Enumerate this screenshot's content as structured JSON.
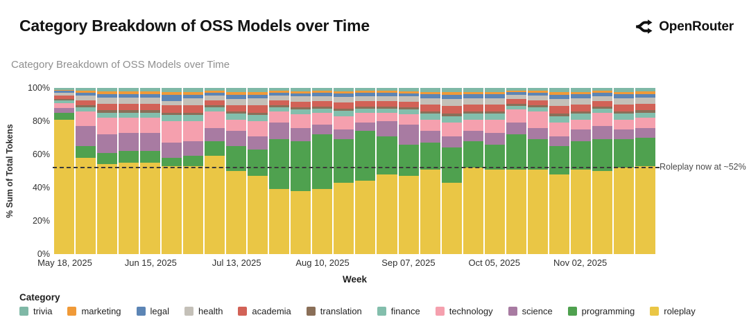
{
  "header": {
    "title": "Category Breakdown of OSS Models over Time",
    "brand": "OpenRouter"
  },
  "chart": {
    "subtitle": "Category Breakdown of OSS Models over Time",
    "ylabel": "% Sum of Total Tokens",
    "xlabel": "Week",
    "legend_title": "Category"
  },
  "chart_data": {
    "type": "bar",
    "stacked": true,
    "units": "percent of total tokens",
    "title": "Category Breakdown of OSS Models over Time",
    "xlabel": "Week",
    "ylabel": "% Sum of Total Tokens",
    "ylim": [
      0,
      100
    ],
    "yticks": [
      0,
      20,
      40,
      60,
      80,
      100
    ],
    "ytick_suffix": "%",
    "grid": false,
    "x": [
      "May 18, 2025",
      "May 25, 2025",
      "Jun 01, 2025",
      "Jun 08, 2025",
      "Jun 15, 2025",
      "Jun 22, 2025",
      "Jun 29, 2025",
      "Jul 06, 2025",
      "Jul 13, 2025",
      "Jul 20, 2025",
      "Jul 27, 2025",
      "Aug 03, 2025",
      "Aug 10, 2025",
      "Aug 17, 2025",
      "Aug 24, 2025",
      "Aug 31, 2025",
      "Sep 07, 2025",
      "Sep 14, 2025",
      "Sep 21, 2025",
      "Sep 28, 2025",
      "Oct 05, 2025",
      "Oct 12, 2025",
      "Oct 19, 2025",
      "Oct 26, 2025",
      "Nov 02, 2025",
      "Nov 09, 2025",
      "Nov 16, 2025",
      "Nov 23, 2025"
    ],
    "xtick_indices": [
      0,
      4,
      8,
      12,
      16,
      20,
      24
    ],
    "stack_order_bottom_to_top": [
      "roleplay",
      "programming",
      "science",
      "technology",
      "finance",
      "translation",
      "academia",
      "health",
      "legal",
      "marketing",
      "trivia"
    ],
    "series": [
      {
        "name": "roleplay",
        "color": "#EAC645",
        "values": [
          81,
          58,
          54,
          55,
          55,
          53,
          53,
          59,
          50,
          47,
          39,
          38,
          39,
          43,
          44,
          48,
          47,
          51,
          43,
          52,
          51,
          51,
          51,
          48,
          51,
          50,
          52,
          53
        ]
      },
      {
        "name": "programming",
        "color": "#4FA14F",
        "values": [
          4,
          7,
          7,
          7,
          7,
          5,
          6,
          9,
          15,
          16,
          30,
          30,
          33,
          26,
          30,
          23,
          19,
          16,
          21,
          16,
          15,
          21,
          18,
          17,
          17,
          19,
          17,
          17
        ]
      },
      {
        "name": "science",
        "color": "#A87BA2",
        "values": [
          3,
          12,
          11,
          11,
          11,
          9,
          9,
          8,
          9,
          8,
          10,
          8,
          6,
          6,
          5,
          9,
          12,
          7,
          7,
          6,
          7,
          7,
          7,
          6,
          7,
          8,
          6,
          6
        ]
      },
      {
        "name": "technology",
        "color": "#F5A0AE",
        "values": [
          3,
          9,
          10,
          9,
          9,
          13,
          12,
          10,
          7,
          9,
          7,
          8,
          7,
          8,
          6,
          5,
          6,
          7,
          8,
          7,
          8,
          8,
          10,
          8,
          6,
          8,
          6,
          6
        ]
      },
      {
        "name": "finance",
        "color": "#83BEAC",
        "values": [
          1.6,
          2.5,
          3.2,
          3.2,
          3.2,
          3.6,
          3.6,
          2.5,
          3.4,
          3.6,
          2.5,
          2.9,
          2.7,
          3.1,
          2.7,
          2.7,
          2.9,
          3.4,
          3.8,
          3.4,
          3.4,
          2.3,
          2.5,
          3.8,
          3.4,
          2.7,
          3.4,
          3.2
        ]
      },
      {
        "name": "translation",
        "color": "#8A6F58",
        "values": [
          0.7,
          1.1,
          1.4,
          1.4,
          1.4,
          1.6,
          1.6,
          1.1,
          1.5,
          1.6,
          1.1,
          1.3,
          1.2,
          1.4,
          1.2,
          1.2,
          1.3,
          1.5,
          1.7,
          1.5,
          1.5,
          1.0,
          1.1,
          1.7,
          1.5,
          1.2,
          1.5,
          1.4
        ]
      },
      {
        "name": "academia",
        "color": "#D26257",
        "values": [
          2.0,
          3.1,
          4.0,
          4.0,
          4.0,
          4.4,
          4.4,
          3.1,
          3.7,
          4.4,
          3.1,
          3.5,
          3.3,
          3.7,
          3.3,
          3.3,
          3.5,
          4.2,
          4.6,
          4.2,
          4.2,
          2.9,
          3.1,
          4.6,
          4.2,
          3.3,
          4.2,
          4.0
        ]
      },
      {
        "name": "health",
        "color": "#C4C0B8",
        "values": [
          1.8,
          2.8,
          3.6,
          3.6,
          3.6,
          2.4,
          4.0,
          2.8,
          3.8,
          4.0,
          2.8,
          3.2,
          3.0,
          3.4,
          3.0,
          3.0,
          3.2,
          3.8,
          4.2,
          3.8,
          3.8,
          2.6,
          2.8,
          4.2,
          3.8,
          3.0,
          3.8,
          3.6
        ]
      },
      {
        "name": "legal",
        "color": "#5C85B5",
        "values": [
          1.1,
          1.7,
          2.2,
          2.2,
          2.2,
          4.0,
          2.4,
          1.7,
          2.3,
          2.4,
          1.7,
          1.9,
          1.8,
          2.0,
          1.8,
          1.8,
          1.9,
          2.3,
          2.5,
          2.3,
          2.3,
          1.6,
          1.7,
          2.5,
          2.3,
          1.8,
          2.3,
          2.2
        ]
      },
      {
        "name": "marketing",
        "color": "#F09A38",
        "values": [
          0.7,
          1.1,
          1.4,
          1.4,
          1.4,
          1.6,
          1.6,
          1.1,
          2.0,
          1.6,
          1.1,
          1.3,
          1.2,
          1.4,
          1.2,
          1.2,
          1.3,
          1.5,
          1.7,
          1.5,
          1.5,
          1.0,
          1.1,
          1.7,
          1.5,
          1.2,
          1.5,
          1.4
        ]
      },
      {
        "name": "trivia",
        "color": "#7FB8A6",
        "values": [
          1.1,
          1.7,
          2.2,
          2.2,
          2.2,
          2.4,
          2.4,
          1.7,
          2.3,
          2.4,
          1.7,
          1.9,
          1.8,
          2.0,
          1.8,
          1.8,
          1.9,
          2.3,
          2.5,
          2.3,
          2.3,
          1.6,
          1.7,
          2.5,
          2.3,
          1.8,
          2.3,
          2.2
        ]
      }
    ],
    "legend_order": [
      "trivia",
      "marketing",
      "legal",
      "health",
      "academia",
      "translation",
      "finance",
      "technology",
      "science",
      "programming",
      "roleplay"
    ],
    "legend_position": "bottom",
    "reference_line": {
      "y": 52,
      "style": "dashed",
      "label": "Roleplay now at ~52%"
    }
  }
}
